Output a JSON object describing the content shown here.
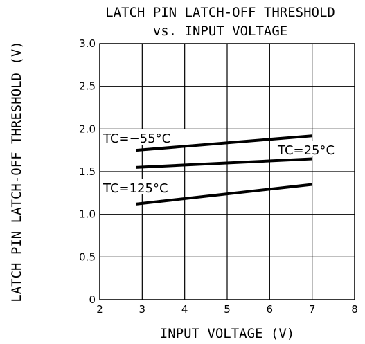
{
  "chart_data": {
    "type": "line",
    "title_line1": "LATCH PIN LATCH-OFF THRESHOLD",
    "title_line2": "vs. INPUT VOLTAGE",
    "xlabel": "INPUT VOLTAGE (V)",
    "ylabel": "LATCH PIN LATCH-OFF THRESHOLD (V)",
    "xlim": [
      2,
      8
    ],
    "ylim": [
      0,
      3.0
    ],
    "x_ticks": [
      "2",
      "3",
      "4",
      "5",
      "6",
      "7",
      "8"
    ],
    "y_ticks": [
      "0",
      "0.5",
      "1.0",
      "1.5",
      "2.0",
      "2.5",
      "3.0"
    ],
    "grid": true,
    "series": [
      {
        "name": "TC=−55°C",
        "x": [
          2.85,
          7.0
        ],
        "y": [
          1.75,
          1.92
        ]
      },
      {
        "name": "TC=25°C",
        "x": [
          2.85,
          7.0
        ],
        "y": [
          1.55,
          1.65
        ]
      },
      {
        "name": "TC=125°C",
        "x": [
          2.85,
          7.0
        ],
        "y": [
          1.12,
          1.35
        ]
      }
    ]
  }
}
